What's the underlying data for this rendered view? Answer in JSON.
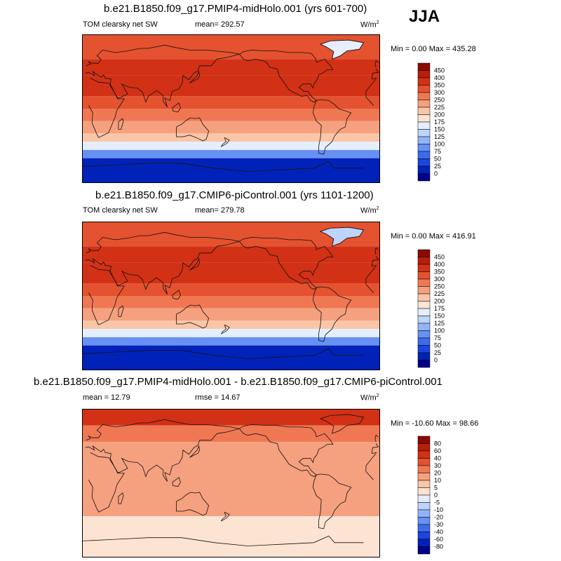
{
  "season": "JJA",
  "units_main": "W/m",
  "units_sup": "2",
  "colors": {
    "abs": [
      "#00008b",
      "#0022b8",
      "#1c45de",
      "#3d6bec",
      "#6790f3",
      "#92b4f7",
      "#bed4fa",
      "#e4eefc",
      "#fde4d2",
      "#fac6a8",
      "#f5a07e",
      "#ef7853",
      "#e4522f",
      "#d23116",
      "#b81e08",
      "#8c0a03"
    ],
    "diff": [
      "#00008b",
      "#0022b8",
      "#1c45de",
      "#3d6bec",
      "#6790f3",
      "#92b4f7",
      "#bed4fa",
      "#e4eefc",
      "#fde4d2",
      "#fac6a8",
      "#f5a07e",
      "#ef7853",
      "#e4522f",
      "#d23116",
      "#b81e08",
      "#8c0a03"
    ]
  },
  "panels": [
    {
      "title": "b.e21.B1850.f09_g17.PMIP4-midHolo.001 (yrs 601-700)",
      "left_label": "TOM clearsky net SW",
      "mid_label": "mean= 292.57",
      "minmax": "Min =   0.00 Max = 435.28"
    },
    {
      "title": "b.e21.B1850.f09_g17.CMIP6-piControl.001 (yrs 1101-1200)",
      "left_label": "TOM clearsky net SW",
      "mid_label": "mean= 279.78",
      "minmax": "Min =   0.00 Max = 416.91"
    },
    {
      "title": "b.e21.B1850.f09_g17.PMIP4-midHolo.001 - b.e21.B1850.f09_g17.CMIP6-piControl.001",
      "left_label": "mean =  12.79",
      "mid_label": "rmse =  14.67",
      "minmax": "Min = -10.60 Max =  98.66"
    }
  ],
  "chart_data": [
    {
      "type": "heatmap",
      "title": "b.e21.B1850.f09_g17.PMIP4-midHolo.001 (yrs 601-700)",
      "variable": "TOM clearsky net SW",
      "units": "W/m2",
      "season": "JJA",
      "mean": 292.57,
      "min": 0.0,
      "max": 435.28,
      "levels": [
        0,
        25,
        50,
        75,
        100,
        125,
        150,
        175,
        200,
        225,
        250,
        300,
        350,
        400,
        450
      ],
      "lat_bands": [
        {
          "lat": [
            60,
            90
          ],
          "value": 340
        },
        {
          "lat": [
            40,
            60
          ],
          "value": 360
        },
        {
          "lat": [
            15,
            40
          ],
          "value": 390
        },
        {
          "lat": [
            0,
            15
          ],
          "value": 330
        },
        {
          "lat": [
            -15,
            0
          ],
          "value": 290
        },
        {
          "lat": [
            -30,
            -15
          ],
          "value": 240
        },
        {
          "lat": [
            -40,
            -30
          ],
          "value": 200
        },
        {
          "lat": [
            -50,
            -40
          ],
          "value": 150
        },
        {
          "lat": [
            -60,
            -50
          ],
          "value": 80
        },
        {
          "lat": [
            -90,
            -60
          ],
          "value": 10
        }
      ]
    },
    {
      "type": "heatmap",
      "title": "b.e21.B1850.f09_g17.CMIP6-piControl.001 (yrs 1101-1200)",
      "variable": "TOM clearsky net SW",
      "units": "W/m2",
      "season": "JJA",
      "mean": 279.78,
      "min": 0.0,
      "max": 416.91,
      "levels": [
        0,
        25,
        50,
        75,
        100,
        125,
        150,
        175,
        200,
        225,
        250,
        300,
        350,
        400,
        450
      ],
      "lat_bands": [
        {
          "lat": [
            60,
            90
          ],
          "value": 320
        },
        {
          "lat": [
            40,
            60
          ],
          "value": 350
        },
        {
          "lat": [
            15,
            40
          ],
          "value": 380
        },
        {
          "lat": [
            0,
            15
          ],
          "value": 330
        },
        {
          "lat": [
            -15,
            0
          ],
          "value": 290
        },
        {
          "lat": [
            -30,
            -15
          ],
          "value": 240
        },
        {
          "lat": [
            -40,
            -30
          ],
          "value": 200
        },
        {
          "lat": [
            -50,
            -40
          ],
          "value": 150
        },
        {
          "lat": [
            -60,
            -50
          ],
          "value": 80
        },
        {
          "lat": [
            -90,
            -60
          ],
          "value": 10
        }
      ]
    },
    {
      "type": "heatmap",
      "title": "b.e21.B1850.f09_g17.PMIP4-midHolo.001 - b.e21.B1850.f09_g17.CMIP6-piControl.001",
      "units": "W/m2",
      "season": "JJA",
      "mean": 12.79,
      "rmse": 14.67,
      "min": -10.6,
      "max": 98.66,
      "levels": [
        -80,
        -60,
        -40,
        -30,
        -20,
        -10,
        -5,
        0,
        5,
        10,
        20,
        30,
        40,
        60,
        80
      ],
      "lat_bands": [
        {
          "lat": [
            70,
            90
          ],
          "value": 45
        },
        {
          "lat": [
            50,
            70
          ],
          "value": 25
        },
        {
          "lat": [
            25,
            50
          ],
          "value": 15
        },
        {
          "lat": [
            -25,
            25
          ],
          "value": 12
        },
        {
          "lat": [
            -40,
            -25
          ],
          "value": 12
        },
        {
          "lat": [
            -60,
            -40
          ],
          "value": 3
        },
        {
          "lat": [
            -90,
            -60
          ],
          "value": 1
        }
      ]
    }
  ]
}
